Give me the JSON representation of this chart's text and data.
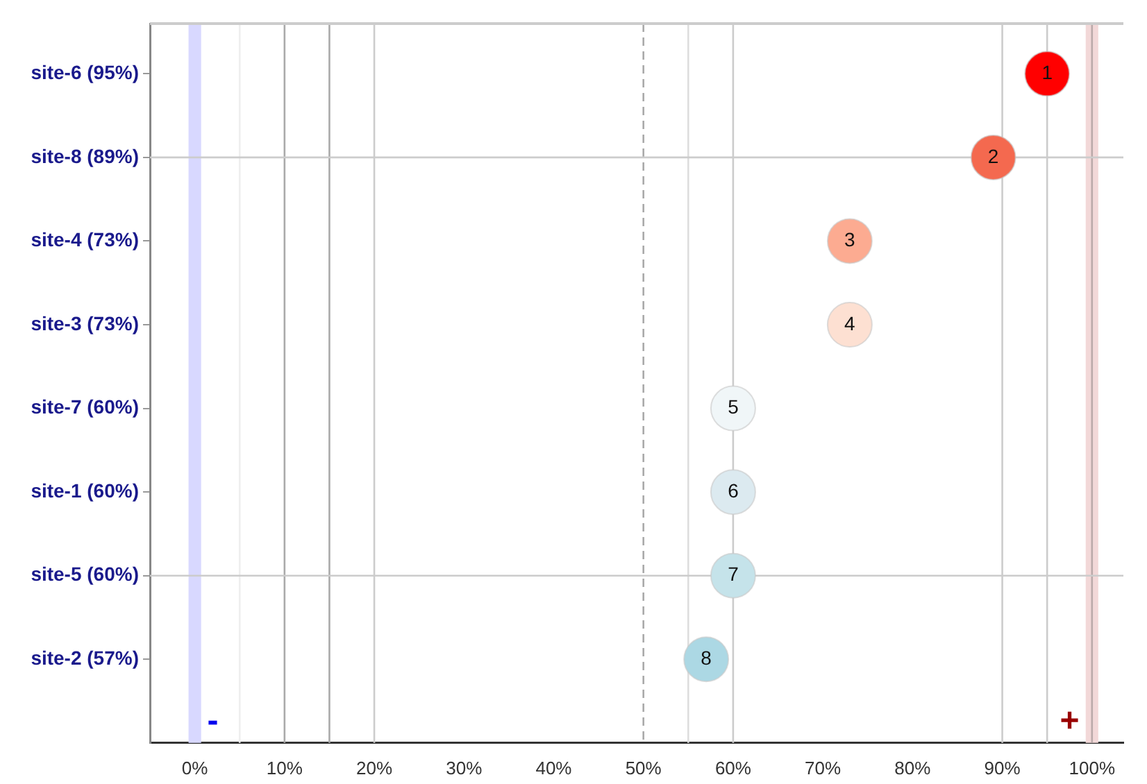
{
  "chart_data": {
    "type": "scatter",
    "categories": [
      "site-6 (95%)",
      "site-8 (89%)",
      "site-4 (73%)",
      "site-3 (73%)",
      "site-7 (60%)",
      "site-1 (60%)",
      "site-5 (60%)",
      "site-2 (57%)"
    ],
    "orientation": "horizontal",
    "values": [
      95,
      89,
      73,
      73,
      60,
      60,
      60,
      57
    ],
    "colors": [
      "#ff0000",
      "#f4694f",
      "#fcab91",
      "#fde0d2",
      "#f0f6f8",
      "#dceaf0",
      "#c5e3ea",
      "#acd8e4"
    ],
    "marker": "circle",
    "xlim": [
      -5,
      103.5
    ],
    "xticks": [
      {
        "value": 0,
        "label": "0%"
      },
      {
        "value": 10,
        "label": "10%"
      },
      {
        "value": 20,
        "label": "20%"
      },
      {
        "value": 30,
        "label": "30%"
      },
      {
        "value": 40,
        "label": "40%"
      },
      {
        "value": 50,
        "label": "50%"
      },
      {
        "value": 60,
        "label": "60%"
      },
      {
        "value": 70,
        "label": "70%"
      },
      {
        "value": 80,
        "label": "80%"
      },
      {
        "value": 90,
        "label": "90%"
      },
      {
        "value": 100,
        "label": "100%"
      }
    ],
    "grid": false,
    "legend": false,
    "ref_lines": [
      {
        "axis": "x",
        "value": 5,
        "color": "#eeeeee"
      },
      {
        "axis": "x",
        "value": 10,
        "color": "#aaaaaa"
      },
      {
        "axis": "x",
        "value": 15,
        "color": "#aaaaaa"
      },
      {
        "axis": "x",
        "value": 20,
        "color": "#cccccc"
      },
      {
        "axis": "x",
        "value": 50,
        "color": "#aaaaaa",
        "line_style": "dashed"
      },
      {
        "axis": "x",
        "value": 55,
        "color": "#dddddd"
      },
      {
        "axis": "x",
        "value": 60,
        "color": "#cccccc"
      },
      {
        "axis": "x",
        "value": 90,
        "color": "#cccccc"
      },
      {
        "axis": "x",
        "value": 95,
        "color": "#cccccc"
      },
      {
        "axis": "x",
        "value": 100,
        "color": "#bbaaaa"
      },
      {
        "axis": "y",
        "value": "site-8 (89%)",
        "color": "#cccccc"
      },
      {
        "axis": "y",
        "value": "site-5 (60%)",
        "color": "#cccccc"
      }
    ],
    "bands": [
      {
        "axis": "x",
        "from": -0.7,
        "to": 0.7,
        "color": "#d8d8ff"
      },
      {
        "axis": "x",
        "from": 99.3,
        "to": 100.7,
        "color": "#f2d8d8"
      }
    ],
    "annotations": [
      {
        "text": "1",
        "x": 95,
        "y": "site-6 (95%)"
      },
      {
        "text": "2",
        "x": 89,
        "y": "site-8 (89%)"
      },
      {
        "text": "3",
        "x": 73,
        "y": "site-4 (73%)"
      },
      {
        "text": "4",
        "x": 73,
        "y": "site-3 (73%)"
      },
      {
        "text": "5",
        "x": 60,
        "y": "site-7 (60%)"
      },
      {
        "text": "6",
        "x": 60,
        "y": "site-1 (60%)"
      },
      {
        "text": "7",
        "x": 60,
        "y": "site-5 (60%)"
      },
      {
        "text": "8",
        "x": 57,
        "y": "site-2 (57%)"
      },
      "-",
      "+"
    ]
  }
}
